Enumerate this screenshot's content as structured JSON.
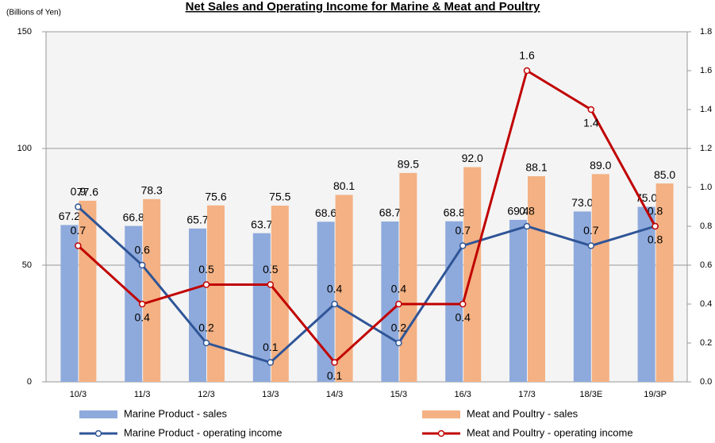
{
  "chart_data": {
    "type": "combo",
    "title": "Net Sales and Operating Income for Marine & Meat and Poultry",
    "ylabel": "(Billions of  Yen)",
    "categories": [
      "10/3",
      "11/3",
      "12/3",
      "13/3",
      "14/3",
      "15/3",
      "16/3",
      "17/3",
      "18/3E",
      "19/3P"
    ],
    "ylim": [
      0,
      150
    ],
    "yticks": [
      0,
      50,
      100,
      150
    ],
    "y2lim": [
      0,
      1.8
    ],
    "y2ticks": [
      {
        "value": 0,
        "label": "0.0"
      },
      0.2,
      0.4,
      0.6,
      0.8,
      {
        "value": 1,
        "label": "1.0"
      },
      1.2,
      1.4,
      1.6,
      1.8
    ],
    "grid": true,
    "series": [
      {
        "name": "Marine Product - sales",
        "type": "bar",
        "color": "#8eaadc",
        "values": [
          67.2,
          66.8,
          65.7,
          63.7,
          68.6,
          68.7,
          68.8,
          69.4,
          73,
          75
        ],
        "value_labels": [
          "67.2",
          "66.8",
          "65.7",
          "63.7",
          "68.6",
          "68.7",
          "68.8",
          "69.4",
          "73.0",
          "75.0"
        ]
      },
      {
        "name": "Meat and Poultry - sales",
        "type": "bar",
        "color": "#f4b183",
        "values": [
          77.6,
          78.3,
          75.6,
          75.5,
          80.1,
          89.5,
          92,
          88.1,
          89,
          85
        ],
        "value_labels": [
          "77.6",
          "78.3",
          "75.6",
          "75.5",
          "80.1",
          "89.5",
          "92.0",
          "88.1",
          "89.0",
          "85.0"
        ]
      },
      {
        "name": "Marine Product - operating income",
        "type": "line",
        "axis": "y2",
        "color": "#2f5597",
        "values": [
          0.9,
          0.6,
          0.2,
          0.1,
          0.4,
          0.2,
          0.7,
          0.8,
          0.7,
          0.8
        ]
      },
      {
        "name": "Meat and Poultry - operating income",
        "type": "line",
        "axis": "y2",
        "color": "#c00000",
        "values": [
          0.7,
          0.4,
          0.5,
          0.5,
          0.1,
          0.4,
          0.4,
          1.6,
          1.4,
          0.8
        ]
      }
    ]
  }
}
